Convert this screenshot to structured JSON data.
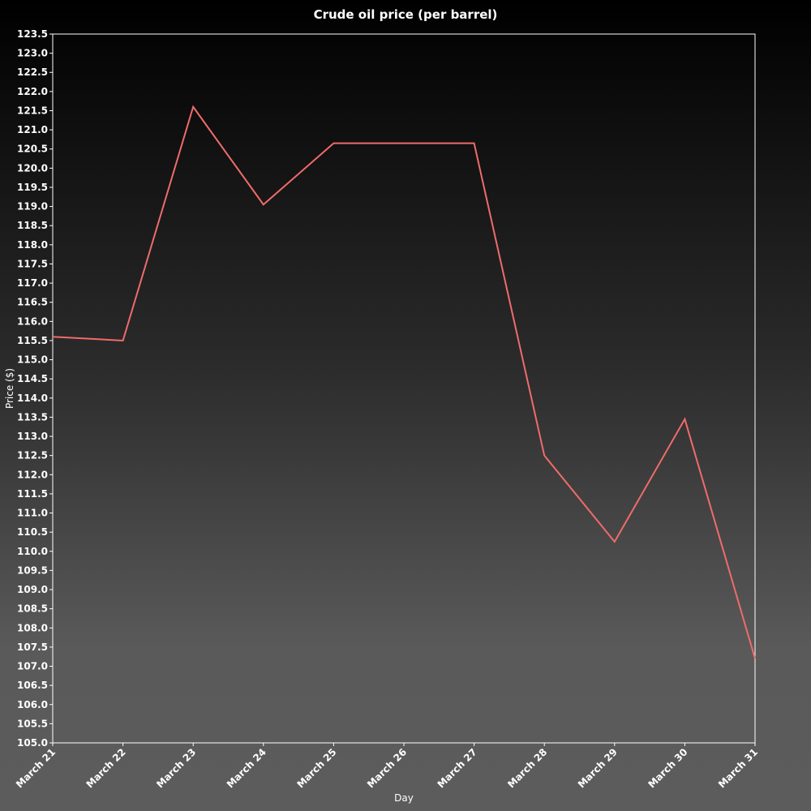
{
  "chart_data": {
    "type": "line",
    "title": "Crude oil price (per barrel)",
    "xlabel": "Day",
    "ylabel": "Price ($)",
    "categories": [
      "March 21",
      "March 22",
      "March 23",
      "March 24",
      "March 25",
      "March 26",
      "March 27",
      "March 28",
      "March 29",
      "March 30",
      "March 31"
    ],
    "series": [
      {
        "values": [
          115.6,
          115.5,
          121.6,
          119.05,
          120.65,
          120.65,
          120.65,
          112.5,
          110.25,
          113.45,
          107.2
        ],
        "color": "#f06b6b"
      }
    ],
    "ylim": [
      105.0,
      123.5
    ],
    "ytick_step": 0.5,
    "grid": false,
    "legend": "none"
  }
}
